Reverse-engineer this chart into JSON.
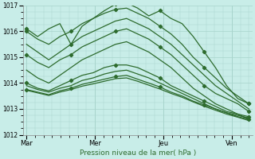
{
  "xlabel": "Pression niveau de la mer( hPa )",
  "days": [
    "Mar",
    "Mer",
    "Jeu",
    "Ven"
  ],
  "ylim": [
    1012,
    1017
  ],
  "yticks": [
    1012,
    1013,
    1014,
    1015,
    1016,
    1017
  ],
  "bg_color": "#c8ede8",
  "grid_color": "#a8d4cc",
  "line_color": "#2d6b2d",
  "ensemble_lines": [
    [
      1016.1,
      1015.8,
      1016.1,
      1016.3,
      1015.5,
      1016.2,
      1016.5,
      1016.8,
      1017.05,
      1017.1,
      1016.9,
      1016.6,
      1016.8,
      1016.5,
      1016.3,
      1015.8,
      1015.2,
      1014.6,
      1013.9,
      1013.4,
      1013.2
    ],
    [
      1016.0,
      1015.7,
      1015.5,
      1015.8,
      1016.0,
      1016.3,
      1016.5,
      1016.7,
      1016.85,
      1016.9,
      1016.7,
      1016.5,
      1016.2,
      1015.9,
      1015.5,
      1015.0,
      1014.6,
      1014.2,
      1013.8,
      1013.5,
      1013.2
    ],
    [
      1015.5,
      1015.2,
      1014.9,
      1015.2,
      1015.5,
      1015.8,
      1016.0,
      1016.2,
      1016.4,
      1016.5,
      1016.3,
      1016.1,
      1015.8,
      1015.5,
      1015.1,
      1014.7,
      1014.3,
      1013.9,
      1013.6,
      1013.3,
      1013.0
    ],
    [
      1015.1,
      1014.8,
      1014.6,
      1014.9,
      1015.1,
      1015.4,
      1015.6,
      1015.8,
      1016.0,
      1016.1,
      1015.9,
      1015.7,
      1015.4,
      1015.1,
      1014.7,
      1014.3,
      1013.9,
      1013.6,
      1013.4,
      1013.2,
      1012.9
    ],
    [
      1014.5,
      1014.2,
      1014.0,
      1014.3,
      1014.6,
      1014.9,
      1015.1,
      1015.3,
      1015.5,
      1015.6,
      1015.4,
      1015.2,
      1014.9,
      1014.6,
      1014.2,
      1013.8,
      1013.5,
      1013.2,
      1013.0,
      1012.8,
      1012.6
    ],
    [
      1014.0,
      1013.8,
      1013.7,
      1013.9,
      1014.1,
      1014.3,
      1014.4,
      1014.6,
      1014.7,
      1014.7,
      1014.6,
      1014.4,
      1014.2,
      1013.9,
      1013.7,
      1013.5,
      1013.3,
      1013.1,
      1012.9,
      1012.8,
      1012.7
    ],
    [
      1013.9,
      1013.75,
      1013.65,
      1013.8,
      1013.9,
      1014.1,
      1014.2,
      1014.35,
      1014.45,
      1014.5,
      1014.35,
      1014.2,
      1014.0,
      1013.8,
      1013.6,
      1013.4,
      1013.2,
      1013.0,
      1012.85,
      1012.75,
      1012.65
    ],
    [
      1013.75,
      1013.65,
      1013.55,
      1013.7,
      1013.8,
      1013.95,
      1014.05,
      1014.15,
      1014.25,
      1014.3,
      1014.15,
      1014.0,
      1013.85,
      1013.65,
      1013.5,
      1013.3,
      1013.15,
      1013.0,
      1012.85,
      1012.7,
      1012.6
    ],
    [
      1013.72,
      1013.62,
      1013.52,
      1013.65,
      1013.75,
      1013.88,
      1013.97,
      1014.07,
      1014.17,
      1014.2,
      1014.07,
      1013.92,
      1013.77,
      1013.6,
      1013.45,
      1013.27,
      1013.1,
      1012.95,
      1012.8,
      1012.68,
      1012.55
    ]
  ],
  "marker_indices": [
    0,
    1,
    3,
    5,
    7
  ],
  "marker_step": 4,
  "linewidth": 0.9,
  "markersize": 2.2
}
